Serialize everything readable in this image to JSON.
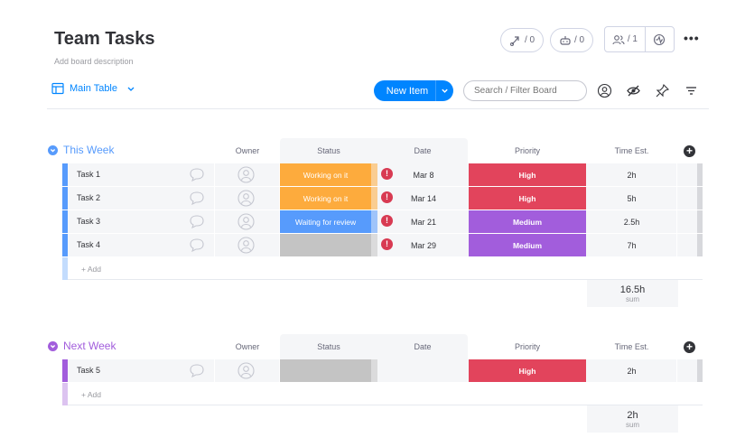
{
  "board": {
    "title": "Team Tasks",
    "description": "Add board description"
  },
  "header": {
    "automations_count": "/ 0",
    "integrations_count": "/ 0",
    "members_count": "/ 1",
    "more_label": "•••"
  },
  "toolbar": {
    "view_label": "Main Table",
    "new_item_label": "New Item",
    "search_placeholder": "Search / Filter Board"
  },
  "columns": {
    "owner": "Owner",
    "status": "Status",
    "date": "Date",
    "priority": "Priority",
    "time": "Time Est."
  },
  "groups": [
    {
      "title": "This Week",
      "color": "#579bfc",
      "add_label": "+ Add",
      "sum": "16.5h",
      "sum_label": "sum",
      "rows": [
        {
          "name": "Task 1",
          "status": "Working on it",
          "status_color": "#fdab3d",
          "date": "Mar 8",
          "alert": "!",
          "priority": "High",
          "priority_color": "#e2445c",
          "time": "2h"
        },
        {
          "name": "Task 2",
          "status": "Working on it",
          "status_color": "#fdab3d",
          "date": "Mar 14",
          "alert": "!",
          "priority": "High",
          "priority_color": "#e2445c",
          "time": "5h"
        },
        {
          "name": "Task 3",
          "status": "Waiting for review",
          "status_color": "#579bfc",
          "date": "Mar 21",
          "alert": "!",
          "priority": "Medium",
          "priority_color": "#a25ddc",
          "time": "2.5h"
        },
        {
          "name": "Task 4",
          "status": "",
          "status_color": "#c4c4c4",
          "date": "Mar 29",
          "alert": "!",
          "priority": "Medium",
          "priority_color": "#a25ddc",
          "time": "7h"
        }
      ]
    },
    {
      "title": "Next Week",
      "color": "#a25ddc",
      "add_label": "+ Add",
      "sum": "2h",
      "sum_label": "sum",
      "rows": [
        {
          "name": "Task 5",
          "status": "",
          "status_color": "#c4c4c4",
          "date": "",
          "alert": "",
          "priority": "High",
          "priority_color": "#e2445c",
          "time": "2h"
        }
      ]
    }
  ]
}
